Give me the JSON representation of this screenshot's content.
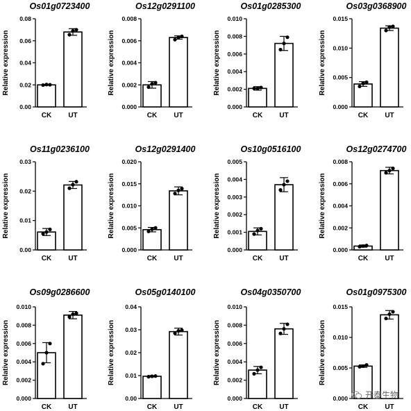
{
  "chart_data": [
    {
      "type": "bar",
      "title": "Os01g0723400",
      "ylabel": "Relative expression",
      "categories": [
        "CK",
        "UT"
      ],
      "values": [
        0.02,
        0.068
      ],
      "points": [
        [
          0.0198,
          0.0203,
          0.0201
        ],
        [
          0.0655,
          0.069,
          0.07
        ]
      ],
      "errors": [
        0.0005,
        0.003
      ],
      "ylim": [
        0,
        0.08
      ],
      "yticks": [
        "0.00",
        "0.02",
        "0.04",
        "0.06",
        "0.08"
      ]
    },
    {
      "type": "bar",
      "title": "Os12g0291100",
      "ylabel": "Relative expression",
      "categories": [
        "CK",
        "UT"
      ],
      "values": [
        0.002,
        0.0063
      ],
      "points": [
        [
          0.0018,
          0.0021,
          0.0022
        ],
        [
          0.0061,
          0.0063,
          0.0064
        ]
      ],
      "errors": [
        0.0003,
        0.00015
      ],
      "ylim": [
        0,
        0.008
      ],
      "yticks": [
        "0.000",
        "0.002",
        "0.004",
        "0.006",
        "0.008"
      ]
    },
    {
      "type": "bar",
      "title": "Os01g0285300",
      "ylabel": "Relative expression",
      "categories": [
        "CK",
        "UT"
      ],
      "values": [
        0.0021,
        0.0072
      ],
      "points": [
        [
          0.0021,
          0.0021,
          0.0022
        ],
        [
          0.0065,
          0.0072,
          0.0079
        ]
      ],
      "errors": [
        0.0002,
        0.0008
      ],
      "ylim": [
        0,
        0.01
      ],
      "yticks": [
        "0.000",
        "0.002",
        "0.004",
        "0.006",
        "0.008",
        "0.010"
      ]
    },
    {
      "type": "bar",
      "title": "Os03g0368900",
      "ylabel": "Relative expression",
      "categories": [
        "CK",
        "UT"
      ],
      "values": [
        0.0039,
        0.0134
      ],
      "points": [
        [
          0.0035,
          0.004,
          0.0042
        ],
        [
          0.013,
          0.0136,
          0.0137
        ]
      ],
      "errors": [
        0.0004,
        0.0004
      ],
      "ylim": [
        0,
        0.015
      ],
      "yticks": [
        "0.000",
        "0.005",
        "0.010",
        "0.015"
      ]
    },
    {
      "type": "bar",
      "title": "Os11g0236100",
      "ylabel": "Relative expression",
      "categories": [
        "CK",
        "UT"
      ],
      "values": [
        0.0061,
        0.0221
      ],
      "points": [
        [
          0.0055,
          0.0061,
          0.007
        ],
        [
          0.021,
          0.0222,
          0.0232
        ]
      ],
      "errors": [
        0.0012,
        0.0012
      ],
      "ylim": [
        0,
        0.03
      ],
      "yticks": [
        "0.00",
        "0.01",
        "0.02",
        "0.03"
      ]
    },
    {
      "type": "bar",
      "title": "Os12g0291400",
      "ylabel": "Relative expression",
      "categories": [
        "CK",
        "UT"
      ],
      "values": [
        0.0046,
        0.0134
      ],
      "points": [
        [
          0.0042,
          0.0047,
          0.005
        ],
        [
          0.0128,
          0.0135,
          0.0139
        ]
      ],
      "errors": [
        0.0005,
        0.0009
      ],
      "ylim": [
        0,
        0.02
      ],
      "yticks": [
        "0.000",
        "0.005",
        "0.010",
        "0.015",
        "0.020"
      ]
    },
    {
      "type": "bar",
      "title": "Os10g0516100",
      "ylabel": "Relative expression",
      "categories": [
        "CK",
        "UT"
      ],
      "values": [
        0.00105,
        0.0037
      ],
      "points": [
        [
          0.0009,
          0.0011,
          0.0012
        ],
        [
          0.0034,
          0.0037,
          0.0039
        ]
      ],
      "errors": [
        0.0002,
        0.0004
      ],
      "ylim": [
        0,
        0.005
      ],
      "yticks": [
        "0.000",
        "0.001",
        "0.002",
        "0.003",
        "0.004",
        "0.005"
      ]
    },
    {
      "type": "bar",
      "title": "Os12g0274700",
      "ylabel": "Relative expression",
      "categories": [
        "CK",
        "UT"
      ],
      "values": [
        0.00035,
        0.0072
      ],
      "points": [
        [
          0.0003,
          0.00035,
          0.0004
        ],
        [
          0.007,
          0.0072,
          0.0074
        ]
      ],
      "errors": [
        0.0001,
        0.0003
      ],
      "ylim": [
        0,
        0.008
      ],
      "yticks": [
        "0.000",
        "0.002",
        "0.004",
        "0.006",
        "0.008"
      ]
    },
    {
      "type": "bar",
      "title": "Os09g0286600",
      "ylabel": "Relative expression",
      "categories": [
        "CK",
        "UT"
      ],
      "values": [
        0.005,
        0.0091
      ],
      "points": [
        [
          0.0038,
          0.005,
          0.006
        ],
        [
          0.0089,
          0.0092,
          0.0093
        ]
      ],
      "errors": [
        0.0011,
        0.0004
      ],
      "ylim": [
        0,
        0.01
      ],
      "yticks": [
        "0.000",
        "0.002",
        "0.004",
        "0.006",
        "0.008",
        "0.010"
      ]
    },
    {
      "type": "bar",
      "title": "Os05g0140100",
      "ylabel": "Relative expression",
      "categories": [
        "CK",
        "UT"
      ],
      "values": [
        0.0097,
        0.0292
      ],
      "points": [
        [
          0.0095,
          0.0097,
          0.0098
        ],
        [
          0.0285,
          0.0295,
          0.0298
        ]
      ],
      "errors": [
        0.0003,
        0.0015
      ],
      "ylim": [
        0,
        0.04
      ],
      "yticks": [
        "0.00",
        "0.01",
        "0.02",
        "0.03",
        "0.04"
      ]
    },
    {
      "type": "bar",
      "title": "Os04g0350700",
      "ylabel": "Relative expression",
      "categories": [
        "CK",
        "UT"
      ],
      "values": [
        0.0031,
        0.0076
      ],
      "points": [
        [
          0.0027,
          0.0031,
          0.0034
        ],
        [
          0.0071,
          0.0076,
          0.0081
        ]
      ],
      "errors": [
        0.0004,
        0.0006
      ],
      "ylim": [
        0,
        0.01
      ],
      "yticks": [
        "0.000",
        "0.002",
        "0.004",
        "0.006",
        "0.008",
        "0.010"
      ]
    },
    {
      "type": "bar",
      "title": "Os01g0975300",
      "ylabel": "Relative expression",
      "categories": [
        "CK",
        "UT"
      ],
      "values": [
        0.0053,
        0.0137
      ],
      "points": [
        [
          0.0052,
          0.0053,
          0.0055
        ],
        [
          0.0131,
          0.0138,
          0.0142
        ]
      ],
      "errors": [
        0.0002,
        0.0007
      ],
      "ylim": [
        0,
        0.015
      ],
      "yticks": [
        "0.000",
        "0.005",
        "0.010",
        "0.015"
      ]
    }
  ],
  "watermark": {
    "text": "开泰生物",
    "icon": "wechat-icon"
  }
}
